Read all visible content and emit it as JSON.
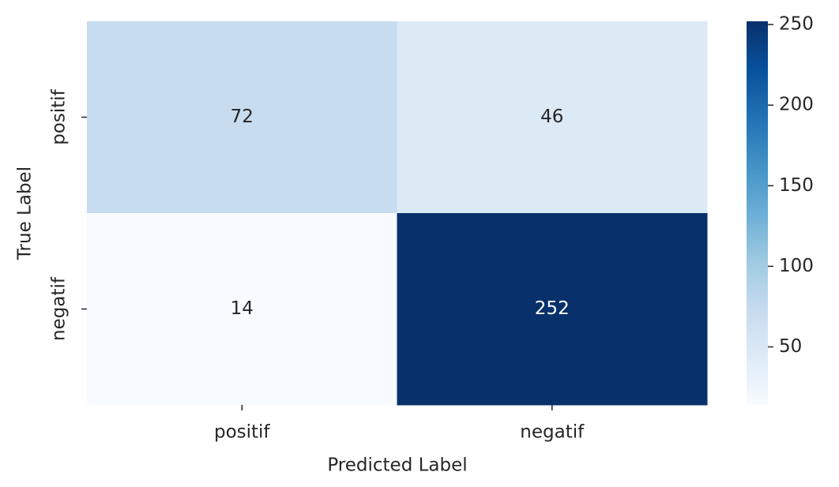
{
  "chart_data": {
    "type": "heatmap",
    "x_label": "Predicted Label",
    "y_label": "True Label",
    "x_categories": [
      "positif",
      "negatif"
    ],
    "y_categories": [
      "positif",
      "negatif"
    ],
    "values": [
      [
        72,
        46
      ],
      [
        14,
        252
      ]
    ],
    "colormap": [
      "#f7fbff",
      "#deebf7",
      "#c6dbef",
      "#9ecae1",
      "#6baed6",
      "#4292c6",
      "#2171b5",
      "#08519c",
      "#08306b"
    ],
    "clim": [
      14,
      252
    ],
    "cticks": [
      50,
      100,
      150,
      200,
      250
    ]
  }
}
